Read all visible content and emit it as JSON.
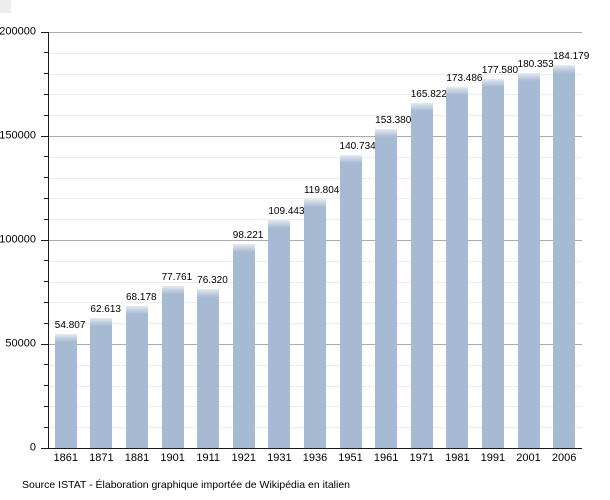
{
  "chart_data": {
    "type": "bar",
    "title": "",
    "xlabel": "",
    "ylabel": "",
    "categories": [
      "1861",
      "1871",
      "1881",
      "1901",
      "1911",
      "1921",
      "1931",
      "1936",
      "1951",
      "1961",
      "1971",
      "1981",
      "1991",
      "2001",
      "2006"
    ],
    "values": [
      54807,
      62613,
      68178,
      77761,
      76320,
      98221,
      109443,
      119804,
      140734,
      153380,
      165822,
      173486,
      177580,
      180353,
      184179
    ],
    "value_labels": [
      "54.807",
      "62.613",
      "68.178",
      "77.761",
      "76.320",
      "98.221",
      "109.443",
      "119.804",
      "140.734",
      "153.380",
      "165.822",
      "173.486",
      "177.580",
      "180.353",
      "184.179"
    ],
    "ylim": [
      0,
      200000
    ],
    "y_major_ticks": [
      0,
      50000,
      100000,
      150000,
      200000
    ],
    "y_major_tick_labels": [
      "0",
      "50000",
      "100000",
      "150000",
      "200000"
    ],
    "y_minor_step": 10000,
    "y_major_step": 50000,
    "grid": "horizontal, minor and major lines",
    "legend": "none",
    "bar_color": "#a6bbd3",
    "bar_top_highlight": "#e3eaf2",
    "major_grid_color": "#aaaaaa",
    "minor_grid_color": "#ececec",
    "axis_color": "#1a1a1a"
  },
  "footer": {
    "source_text": "Source ISTAT - Élaboration graphique importée de Wikipédia en italien"
  }
}
